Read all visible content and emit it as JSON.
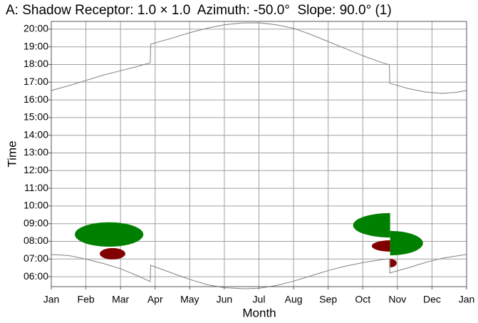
{
  "chart_data": {
    "type": "line",
    "title": "A: Shadow Receptor: 1.0 × 1.0  Azimuth: -50.0°  Slope: 90.0° (1)",
    "x_label": "Month",
    "y_label": "Time",
    "xlim": [
      0,
      12
    ],
    "xticks": [
      {
        "value": 0,
        "label": "Jan"
      },
      {
        "value": 1,
        "label": "Feb"
      },
      {
        "value": 2,
        "label": "Mar"
      },
      {
        "value": 3,
        "label": "Apr"
      },
      {
        "value": 4,
        "label": "May"
      },
      {
        "value": 5,
        "label": "Jun"
      },
      {
        "value": 6,
        "label": "Jul"
      },
      {
        "value": 7,
        "label": "Aug"
      },
      {
        "value": 8,
        "label": "Sep"
      },
      {
        "value": 9,
        "label": "Oct"
      },
      {
        "value": 10,
        "label": "Nov"
      },
      {
        "value": 11,
        "label": "Dec"
      },
      {
        "value": 12,
        "label": "Jan"
      }
    ],
    "ylim": [
      5.44,
      20.44
    ],
    "yticks": [
      {
        "value": 6,
        "label": "06:00"
      },
      {
        "value": 7,
        "label": "07:00"
      },
      {
        "value": 8,
        "label": "08:00"
      },
      {
        "value": 9,
        "label": "09:00"
      },
      {
        "value": 10,
        "label": "10:00"
      },
      {
        "value": 11,
        "label": "11:00"
      },
      {
        "value": 12,
        "label": "12:00"
      },
      {
        "value": 13,
        "label": "13:00"
      },
      {
        "value": 14,
        "label": "14:00"
      },
      {
        "value": 15,
        "label": "15:00"
      },
      {
        "value": 16,
        "label": "16:00"
      },
      {
        "value": 17,
        "label": "17:00"
      },
      {
        "value": 18,
        "label": "18:00"
      },
      {
        "value": 19,
        "label": "19:00"
      },
      {
        "value": 20,
        "label": "20:00"
      }
    ],
    "grid": true,
    "series": [
      {
        "color": "#808080",
        "x": [
          0,
          0.5,
          1,
          1.5,
          2,
          2.5,
          2.86,
          2.87,
          3.5,
          4,
          4.5,
          5,
          5.5,
          6,
          6.5,
          7,
          7.5,
          8,
          8.5,
          9,
          9.5,
          9.77,
          9.78,
          10.3,
          10.8,
          11.3,
          11.7,
          12
        ],
        "values": [
          16.53,
          16.8,
          17.1,
          17.4,
          17.65,
          17.9,
          18.1,
          19.15,
          19.5,
          19.8,
          20.05,
          20.25,
          20.35,
          20.36,
          20.25,
          20.05,
          19.7,
          19.3,
          18.9,
          18.5,
          18.15,
          17.98,
          16.94,
          16.65,
          16.45,
          16.37,
          16.43,
          16.53
        ]
      },
      {
        "color": "#808080",
        "x": [
          0,
          0.5,
          1,
          1.5,
          2,
          2.5,
          2.86,
          2.87,
          3.5,
          4,
          4.5,
          5,
          5.6,
          6,
          6.5,
          7,
          7.5,
          8,
          8.5,
          9,
          9.5,
          9.77,
          9.78,
          10.3,
          10.8,
          11.3,
          12
        ],
        "values": [
          7.26,
          7.2,
          7.0,
          6.75,
          6.45,
          6.05,
          5.73,
          6.65,
          6.2,
          5.85,
          5.55,
          5.38,
          5.32,
          5.35,
          5.5,
          5.75,
          6.05,
          6.35,
          6.6,
          6.8,
          6.95,
          7.02,
          6.21,
          6.5,
          6.8,
          7.05,
          7.26
        ]
      }
    ],
    "shadows": [
      {
        "color": "#008000",
        "x": 1.67,
        "y": 8.39,
        "rx": 0.99,
        "ry": 0.69,
        "half": "full"
      },
      {
        "color": "#800000",
        "x": 1.77,
        "y": 7.3,
        "rx": 0.37,
        "ry": 0.32,
        "half": "full"
      },
      {
        "color": "#008000",
        "x": 9.79,
        "y": 8.91,
        "rx": 1.07,
        "ry": 0.69,
        "half": "left"
      },
      {
        "color": "#008000",
        "x": 9.79,
        "y": 7.9,
        "rx": 0.95,
        "ry": 0.69,
        "half": "right"
      },
      {
        "color": "#800000",
        "x": 9.79,
        "y": 7.74,
        "rx": 0.53,
        "ry": 0.32,
        "half": "left"
      },
      {
        "color": "#800000",
        "x": 9.79,
        "y": 6.77,
        "rx": 0.19,
        "ry": 0.24,
        "half": "right"
      }
    ]
  }
}
